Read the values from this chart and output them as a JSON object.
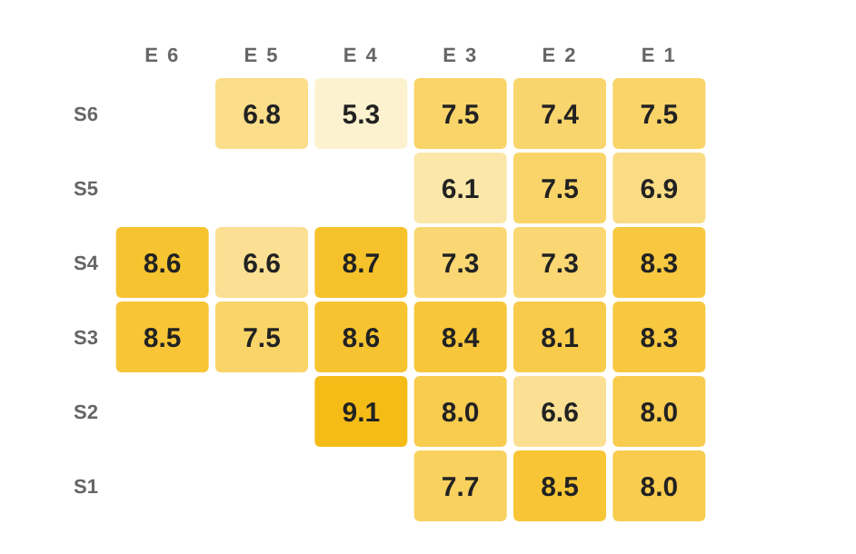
{
  "chart_data": {
    "type": "heatmap",
    "categories": [
      "E 6",
      "E 5",
      "E 4",
      "E 3",
      "E 2",
      "E 1"
    ],
    "y_categories": [
      "S6",
      "S5",
      "S4",
      "S3",
      "S2",
      "S1"
    ],
    "cells": [
      [
        null,
        6.8,
        5.3,
        7.5,
        7.4,
        7.5
      ],
      [
        null,
        null,
        null,
        6.1,
        7.5,
        6.9
      ],
      [
        8.6,
        6.6,
        8.7,
        7.3,
        7.3,
        8.3
      ],
      [
        8.5,
        7.5,
        8.6,
        8.4,
        8.1,
        8.3
      ],
      [
        null,
        null,
        9.1,
        8.0,
        6.6,
        8.0
      ],
      [
        null,
        null,
        null,
        7.7,
        8.5,
        8.0
      ]
    ],
    "cell_labels": [
      [
        null,
        "6.8",
        "5.3",
        "7.5",
        "7.4",
        "7.5"
      ],
      [
        null,
        null,
        null,
        "6.1",
        "7.5",
        "6.9"
      ],
      [
        "8.6",
        "6.6",
        "8.7",
        "7.3",
        "7.3",
        "8.3"
      ],
      [
        "8.5",
        "7.5",
        "8.6",
        "8.4",
        "8.1",
        "8.3"
      ],
      [
        null,
        null,
        "9.1",
        "8.0",
        "6.6",
        "8.0"
      ],
      [
        null,
        null,
        null,
        "7.7",
        "8.5",
        "8.0"
      ]
    ],
    "colors": [
      "#fdf2cf",
      "#fad877",
      "#f5bc18"
    ],
    "data_labels": true
  }
}
